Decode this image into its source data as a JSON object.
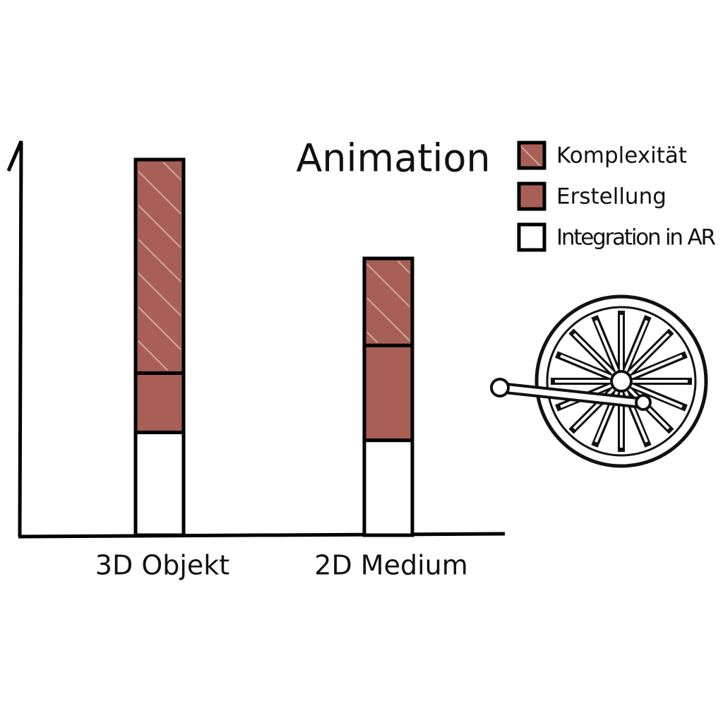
{
  "chart_data": {
    "type": "stacked_bar",
    "title": "Animation",
    "categories": [
      "3D Objekt",
      "2D Medium"
    ],
    "series": [
      {
        "name": "Komplexität",
        "color": "#a85f55",
        "hatch": true,
        "values": [
          54,
          22
        ]
      },
      {
        "name": "Erstellung",
        "color": "#a85f55",
        "hatch": false,
        "values": [
          15,
          24
        ]
      },
      {
        "name": "Integration in AR",
        "color": "#ffffff",
        "hatch": false,
        "values": [
          26,
          24
        ]
      }
    ],
    "ylim": [
      0,
      100
    ],
    "legend": "upper right"
  }
}
